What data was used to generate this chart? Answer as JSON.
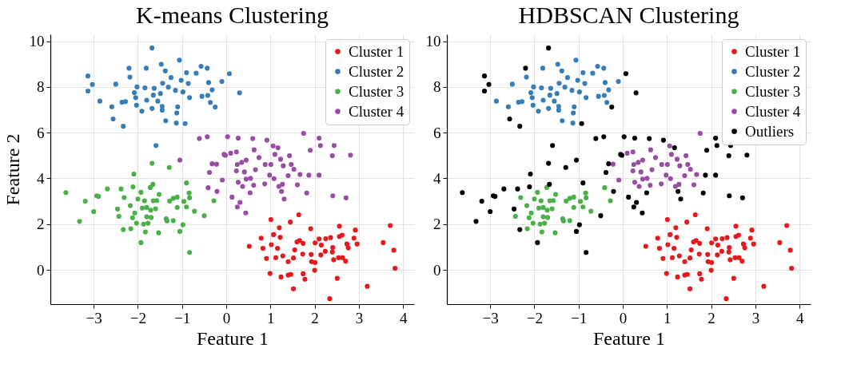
{
  "chart_data": [
    {
      "type": "scatter",
      "title": "K-means Clustering",
      "xlabel": "Feature 1",
      "ylabel": "Feature 2",
      "xlim": [
        -3.98,
        4.25
      ],
      "ylim": [
        -1.5,
        10.3
      ],
      "xticks": [
        -3,
        -2,
        -1,
        0,
        1,
        2,
        3,
        4
      ],
      "yticks": [
        0,
        2,
        4,
        6,
        8,
        10
      ],
      "grid": true,
      "legend": "top right",
      "marker": "circle",
      "series": [
        {
          "name": "Cluster 1",
          "color": "#e41a1c",
          "x": [
            1.64,
            1.01,
            1.45,
            1.2,
            1.91,
            2.56,
            2.92,
            3.71,
            0.79,
            1.07,
            1.22,
            1.6,
            1.66,
            1.74,
            2.01,
            2.1,
            2.25,
            2.36,
            2.56,
            2.62,
            2.89,
            2.73,
            2.96,
            3.55,
            0.52,
            0.83,
            1.02,
            1.16,
            1.55,
            1.73,
            2.15,
            2.24,
            2.41,
            2.4,
            2.76,
            3.79,
            0.91,
            1.12,
            1.28,
            1.4,
            1.52,
            1.92,
            1.93,
            2.01,
            2.14,
            2.43,
            2.54,
            2.63,
            2.7,
            3.82,
            0.99,
            1.24,
            1.4,
            1.46,
            1.74,
            1.78,
            2.0,
            2.51,
            3.19,
            1.52,
            2.34
          ],
          "values": [
            2.41,
            2.2,
            2.09,
            1.84,
            1.8,
            1.91,
            1.74,
            1.94,
            1.39,
            1.54,
            1.42,
            1.22,
            1.28,
            1.16,
            1.18,
            1.35,
            1.36,
            1.41,
            1.46,
            1.52,
            1.39,
            1.13,
            1.13,
            1.19,
            1.03,
            0.94,
            1.1,
            0.94,
            0.87,
            0.69,
            1.08,
            0.81,
            0.98,
            0.78,
            0.96,
            0.86,
            0.5,
            0.53,
            0.61,
            0.36,
            0.52,
            0.67,
            0.36,
            0.32,
            0.65,
            0.44,
            0.53,
            0.53,
            0.38,
            0.07,
            -0.16,
            -0.31,
            -0.23,
            -0.2,
            -0.17,
            -0.41,
            -0.02,
            -0.37,
            -0.72,
            -0.83,
            -1.26
          ]
        },
        {
          "name": "Cluster 2",
          "color": "#377eb8",
          "x": [
            -1.68,
            -1.06,
            -1.47,
            -2.2,
            -1.81,
            -1.38,
            -3.13,
            -2.18,
            -1.25,
            -0.9,
            -0.68,
            -0.57,
            -0.43,
            0.07,
            -0.1,
            -0.4,
            -0.32,
            -0.55,
            -0.42,
            -0.36,
            -0.25,
            -3.03,
            -3.13,
            -2.5,
            -2.86,
            -2.59,
            -2.56,
            -2.33,
            -2.36,
            -2.28,
            -2.02,
            -2.08,
            -2.05,
            -2.03,
            -1.91,
            -1.84,
            -1.8,
            -1.68,
            -1.63,
            -1.65,
            -1.55,
            -1.45,
            -1.45,
            -1.44,
            -1.49,
            -1.37,
            -1.31,
            -1.15,
            -1.1,
            -1.12,
            -1.13,
            -0.93,
            -0.98,
            -1.02,
            -0.86,
            -0.83,
            -1.59,
            0.3
          ],
          "values": [
            9.7,
            9.17,
            8.99,
            8.82,
            8.82,
            8.7,
            8.48,
            8.43,
            8.41,
            8.62,
            8.6,
            8.9,
            8.82,
            8.58,
            8.24,
            8.19,
            7.87,
            7.59,
            7.63,
            7.32,
            7.12,
            8.11,
            7.82,
            8.12,
            7.38,
            7.13,
            6.6,
            6.28,
            7.33,
            7.36,
            8.0,
            7.75,
            7.53,
            7.2,
            6.94,
            7.96,
            7.42,
            7.06,
            7.94,
            7.64,
            7.38,
            7.15,
            6.98,
            8.16,
            7.71,
            6.52,
            7.99,
            7.85,
            7.13,
            6.86,
            6.42,
            6.4,
            7.78,
            8.29,
            8.15,
            7.53,
            5.44,
            7.74
          ]
        },
        {
          "name": "Cluster 3",
          "color": "#4daf4a",
          "x": [
            -3.63,
            -3.19,
            -3.32,
            -3.0,
            -2.93,
            -2.89,
            -2.69,
            -2.38,
            -2.31,
            -2.46,
            -2.43,
            -2.33,
            -2.17,
            -2.09,
            -2.11,
            -1.93,
            -2.0,
            -1.85,
            -1.9,
            -2.07,
            -2.12,
            -2.03,
            -2.16,
            -1.93,
            -1.83,
            -1.87,
            -1.77,
            -1.8,
            -1.7,
            -1.8,
            -1.71,
            -1.68,
            -1.72,
            -1.66,
            -1.52,
            -1.65,
            -1.57,
            -1.6,
            -1.53,
            -1.29,
            -1.28,
            -1.11,
            -1.2,
            -1.36,
            -1.34,
            -1.2,
            -1.11,
            -1.05,
            -0.98,
            -0.96,
            -0.9,
            -0.84,
            -0.83,
            -0.9,
            -0.72,
            -0.5,
            -0.83,
            -0.28
          ],
          "values": [
            3.38,
            3.0,
            2.12,
            2.55,
            3.24,
            3.21,
            3.54,
            3.54,
            3.16,
            2.66,
            2.34,
            1.76,
            2.81,
            4.19,
            3.63,
            3.39,
            3.1,
            3.02,
            2.7,
            2.49,
            2.28,
            2.04,
            1.8,
            1.19,
            1.66,
            2.0,
            2.04,
            2.32,
            2.29,
            2.73,
            2.61,
            4.66,
            3.6,
            3.74,
            3.3,
            3.02,
            3.03,
            2.67,
            1.62,
            4.48,
            3.01,
            3.18,
            3.13,
            2.23,
            2.14,
            2.15,
            2.73,
            1.68,
            1.97,
            2.99,
            3.8,
            3.36,
            3.15,
            2.75,
            2.56,
            2.37,
            0.76,
            3.02
          ]
        },
        {
          "name": "Cluster 4",
          "color": "#984ea3",
          "x": [
            -0.61,
            -0.43,
            0.03,
            0.27,
            0.6,
            0.92,
            1.06,
            1.17,
            1.75,
            1.9,
            2.4,
            2.81,
            -0.05,
            0.1,
            0.23,
            0.63,
            0.74,
            1.1,
            1.43,
            -0.32,
            -0.22,
            0.25,
            0.35,
            0.45,
            0.88,
            1.01,
            1.23,
            1.29,
            1.47,
            1.53,
            -0.38,
            0.23,
            0.41,
            0.66,
            0.98,
            1.4,
            1.67,
            1.87,
            2.1,
            -0.09,
            0.45,
            0.55,
            1.08,
            0.27,
            0.62,
            0.87,
            1.19,
            1.27,
            1.61,
            -0.41,
            0.37,
            -0.21,
            0.54,
            1.25,
            1.82,
            0.13,
            1.31,
            2.41,
            2.71,
            0.31,
            0.25,
            0.44,
            -1.05,
            -0.02,
            2.1,
            2.13,
            2.44
          ],
          "values": [
            5.74,
            5.82,
            5.82,
            5.76,
            5.74,
            5.67,
            5.42,
            5.34,
            5.97,
            5.23,
            4.99,
            5.02,
            5.05,
            5.1,
            5.16,
            5.25,
            4.91,
            5.05,
            4.99,
            4.64,
            4.62,
            4.61,
            4.7,
            4.8,
            4.61,
            4.61,
            4.84,
            4.55,
            4.61,
            4.4,
            4.26,
            4.33,
            4.28,
            4.38,
            4.14,
            4.12,
            4.17,
            4.14,
            4.14,
            3.93,
            3.97,
            4.0,
            3.99,
            3.83,
            3.7,
            3.76,
            3.65,
            3.74,
            3.72,
            3.59,
            3.65,
            3.43,
            3.37,
            3.43,
            3.36,
            3.18,
            3.1,
            3.24,
            3.15,
            2.95,
            2.75,
            2.49,
            4.8,
            5.01,
            5.76,
            5.44,
            5.44
          ]
        }
      ]
    },
    {
      "type": "scatter",
      "title": "HDBSCAN Clustering",
      "xlabel": "Feature 1",
      "xlim": [
        -3.98,
        4.25
      ],
      "ylim": [
        -1.5,
        10.3
      ],
      "xticks": [
        -3,
        -2,
        -1,
        0,
        1,
        2,
        3,
        4
      ],
      "yticks": [
        0,
        2,
        4,
        6,
        8,
        10
      ],
      "grid": true,
      "legend": "top right",
      "marker": "circle",
      "series": [
        {
          "name": "Cluster 1",
          "color": "#e41a1c",
          "x": [
            1.64,
            1.01,
            1.45,
            1.2,
            1.91,
            2.56,
            2.92,
            3.71,
            0.79,
            1.07,
            1.22,
            1.6,
            1.66,
            1.74,
            2.01,
            2.1,
            2.25,
            2.36,
            2.56,
            2.62,
            2.89,
            2.73,
            2.96,
            3.55,
            0.52,
            0.83,
            1.02,
            1.16,
            1.55,
            1.73,
            2.15,
            2.24,
            2.41,
            2.4,
            2.76,
            3.79,
            0.91,
            1.12,
            1.28,
            1.4,
            1.52,
            1.92,
            1.93,
            2.01,
            2.14,
            2.43,
            2.54,
            2.63,
            2.7,
            3.82,
            0.99,
            1.24,
            1.4,
            1.46,
            1.74,
            1.78,
            2.0,
            2.51,
            3.19,
            1.52,
            2.34
          ],
          "values": [
            2.41,
            2.2,
            2.09,
            1.84,
            1.8,
            1.91,
            1.74,
            1.94,
            1.39,
            1.54,
            1.42,
            1.22,
            1.28,
            1.16,
            1.18,
            1.35,
            1.36,
            1.41,
            1.46,
            1.52,
            1.39,
            1.13,
            1.13,
            1.19,
            1.03,
            0.94,
            1.1,
            0.94,
            0.87,
            0.69,
            1.08,
            0.81,
            0.98,
            0.78,
            0.96,
            0.86,
            0.5,
            0.53,
            0.61,
            0.36,
            0.52,
            0.67,
            0.36,
            0.32,
            0.65,
            0.44,
            0.53,
            0.53,
            0.38,
            0.07,
            -0.16,
            -0.31,
            -0.23,
            -0.2,
            -0.17,
            -0.41,
            -0.02,
            -0.37,
            -0.72,
            -0.83,
            -1.26
          ]
        },
        {
          "name": "Cluster 2",
          "color": "#377eb8",
          "x": [
            -1.06,
            -1.47,
            -1.81,
            -1.38,
            -2.18,
            -1.25,
            -0.9,
            -0.68,
            -0.57,
            -0.43,
            -0.1,
            -0.4,
            -0.32,
            -0.55,
            -0.42,
            -0.36,
            -2.5,
            -2.86,
            -2.59,
            -2.36,
            -2.28,
            -2.02,
            -2.08,
            -2.05,
            -2.03,
            -1.91,
            -1.84,
            -1.8,
            -1.68,
            -1.63,
            -1.65,
            -1.55,
            -1.45,
            -1.45,
            -1.44,
            -1.49,
            -1.37,
            -1.31,
            -1.15,
            -1.1,
            -1.12,
            -1.13,
            -0.98,
            -1.02,
            -0.86,
            -0.83
          ],
          "values": [
            9.17,
            8.99,
            8.82,
            8.7,
            8.43,
            8.41,
            8.62,
            8.6,
            8.9,
            8.82,
            8.24,
            8.19,
            7.87,
            7.59,
            7.63,
            7.32,
            8.12,
            7.38,
            7.13,
            7.33,
            7.36,
            8.0,
            7.75,
            7.53,
            7.2,
            6.94,
            7.96,
            7.42,
            7.06,
            7.94,
            7.64,
            7.38,
            7.15,
            6.98,
            8.16,
            7.71,
            6.52,
            7.99,
            7.85,
            7.13,
            6.86,
            6.42,
            7.78,
            8.29,
            8.15,
            7.53
          ]
        },
        {
          "name": "Cluster 3",
          "color": "#4daf4a",
          "x": [
            -2.31,
            -2.43,
            -2.17,
            -1.93,
            -2.0,
            -1.85,
            -1.9,
            -2.07,
            -2.12,
            -2.03,
            -2.16,
            -1.83,
            -1.87,
            -1.77,
            -1.8,
            -1.7,
            -1.8,
            -1.71,
            -1.72,
            -1.52,
            -1.65,
            -1.57,
            -1.6,
            -1.53,
            -1.28,
            -1.11,
            -1.2,
            -1.36,
            -1.34,
            -1.2,
            -1.11,
            -0.96,
            -0.84,
            -0.83,
            -0.9,
            -0.72,
            -0.28,
            -0.41
          ],
          "values": [
            3.16,
            2.34,
            2.81,
            3.39,
            3.1,
            3.02,
            2.7,
            2.49,
            2.28,
            2.04,
            1.8,
            1.66,
            2.0,
            2.04,
            2.32,
            2.29,
            2.73,
            2.61,
            3.6,
            3.3,
            3.02,
            3.03,
            2.67,
            1.62,
            3.01,
            3.18,
            3.13,
            2.23,
            2.14,
            2.15,
            2.73,
            2.99,
            3.36,
            3.15,
            2.75,
            2.56,
            3.02,
            3.59
          ]
        },
        {
          "name": "Cluster 4",
          "color": "#984ea3",
          "x": [
            1.06,
            1.75,
            0.1,
            0.23,
            0.63,
            0.74,
            1.1,
            1.43,
            -0.22,
            0.25,
            0.35,
            0.45,
            0.88,
            1.01,
            1.23,
            1.29,
            1.47,
            1.53,
            0.23,
            0.41,
            0.66,
            0.98,
            1.4,
            1.67,
            -0.09,
            0.45,
            0.55,
            1.08,
            0.27,
            0.62,
            0.87,
            1.19,
            1.27,
            1.61,
            0.37
          ],
          "values": [
            5.42,
            5.97,
            5.1,
            5.16,
            5.25,
            4.91,
            5.05,
            4.99,
            4.62,
            4.61,
            4.7,
            4.8,
            4.61,
            4.61,
            4.84,
            4.55,
            4.61,
            4.4,
            4.33,
            4.28,
            4.38,
            4.14,
            4.12,
            4.17,
            3.93,
            3.97,
            4.0,
            3.99,
            3.83,
            3.7,
            3.76,
            3.65,
            3.74,
            3.72,
            3.65
          ]
        },
        {
          "name": "Outliers",
          "color": "#000000",
          "x": [
            -1.68,
            -2.2,
            -3.13,
            0.07,
            -0.25,
            -3.03,
            -3.13,
            -2.56,
            -2.33,
            -0.93,
            -1.59,
            0.3,
            -3.63,
            -3.19,
            -3.32,
            -3.0,
            -2.93,
            -2.89,
            -2.69,
            -2.38,
            -2.46,
            -2.33,
            -2.09,
            -2.11,
            -1.93,
            -1.68,
            -1.66,
            -1.29,
            -1.05,
            -0.98,
            -0.9,
            -0.5,
            -0.83,
            -0.61,
            -0.43,
            0.03,
            0.27,
            0.6,
            0.92,
            1.17,
            1.9,
            2.4,
            2.81,
            -0.05,
            -0.32,
            -0.38,
            1.87,
            2.1,
            -0.21,
            0.54,
            1.25,
            1.82,
            0.13,
            1.31,
            2.41,
            2.71,
            0.31,
            0.25,
            0.44,
            -1.05,
            -0.02,
            2.1,
            2.13,
            2.44
          ],
          "values": [
            9.7,
            8.82,
            8.48,
            8.58,
            7.12,
            8.11,
            7.82,
            6.6,
            6.28,
            6.4,
            5.44,
            7.74,
            3.38,
            3.0,
            2.12,
            2.55,
            3.24,
            3.21,
            3.54,
            3.54,
            2.66,
            1.76,
            4.19,
            3.63,
            1.19,
            4.66,
            3.74,
            4.48,
            1.68,
            1.97,
            3.8,
            2.37,
            0.76,
            5.74,
            5.82,
            5.82,
            5.76,
            5.74,
            5.67,
            5.34,
            5.23,
            4.99,
            5.02,
            5.05,
            4.64,
            4.26,
            4.14,
            4.14,
            3.43,
            3.37,
            3.43,
            3.36,
            3.18,
            3.1,
            3.24,
            3.15,
            2.95,
            2.75,
            2.49,
            4.8,
            5.01,
            5.76,
            5.44,
            5.44
          ]
        }
      ]
    }
  ]
}
